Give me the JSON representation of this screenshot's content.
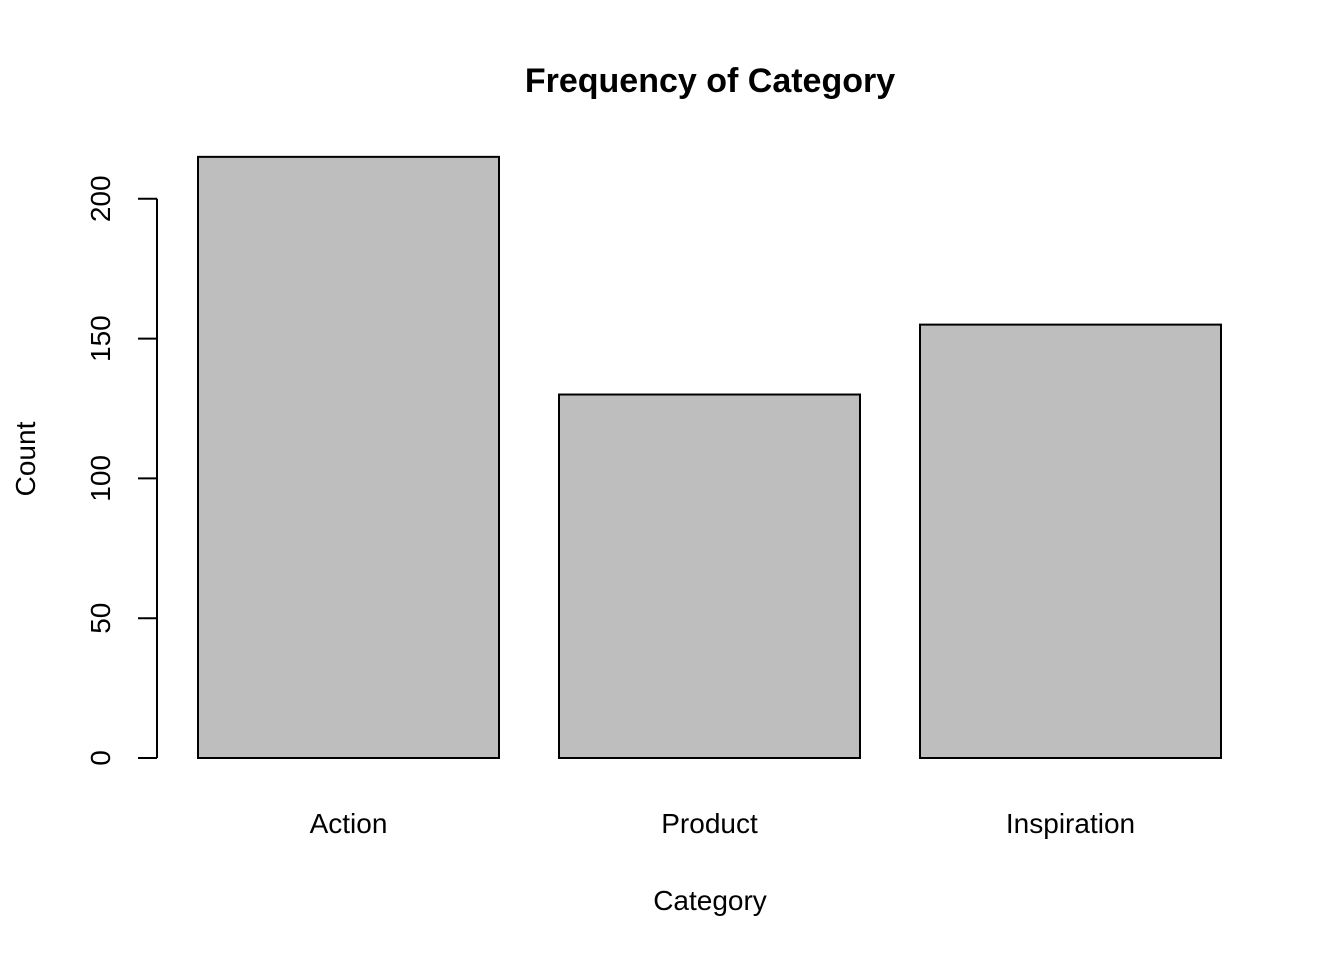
{
  "chart_data": {
    "type": "bar",
    "title": "Frequency of Category",
    "xlabel": "Category",
    "ylabel": "Count",
    "categories": [
      "Action",
      "Product",
      "Inspiration"
    ],
    "values": [
      215,
      130,
      155
    ],
    "ylim": [
      0,
      215
    ],
    "yticks": [
      0,
      50,
      100,
      150,
      200
    ],
    "grid": false,
    "bar_color": "#bebebe"
  }
}
